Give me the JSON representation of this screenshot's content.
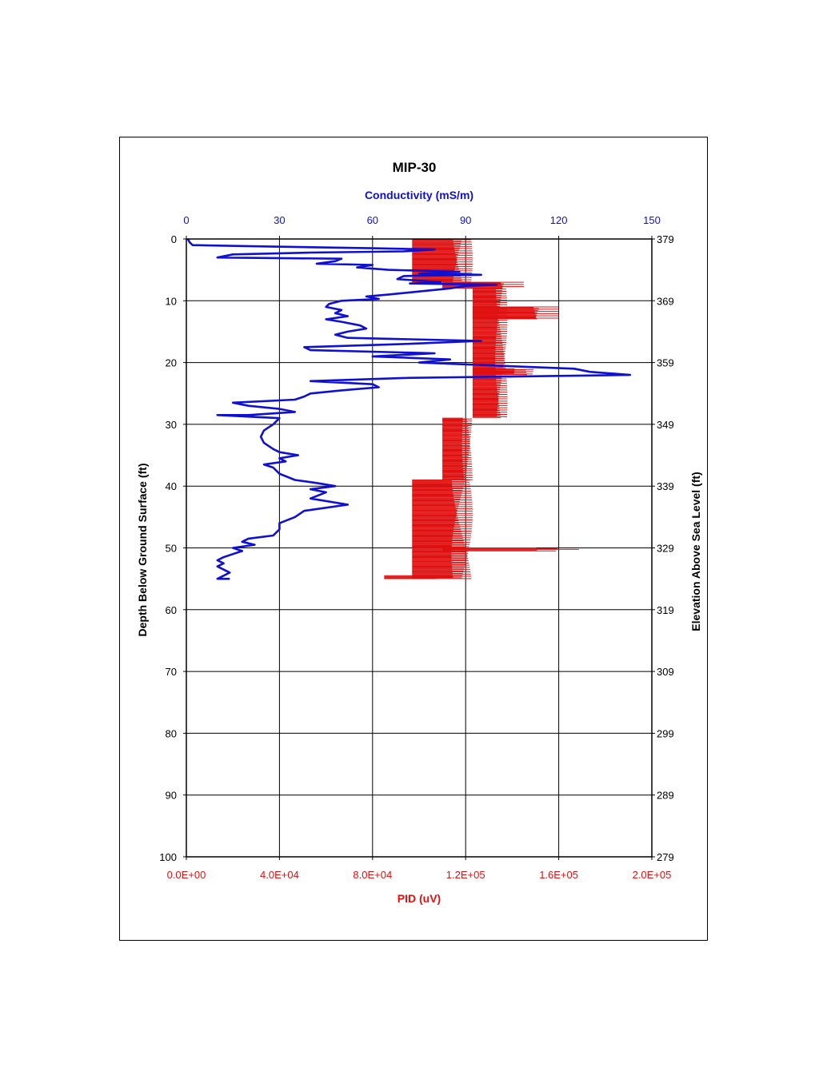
{
  "chart_data": {
    "type": "line",
    "title": "MIP-30",
    "orientation": "vertical-depth",
    "left_axis": {
      "label": "Depth Below Ground Surface (ft)",
      "range": [
        0,
        100
      ],
      "ticks": [
        "0",
        "10",
        "20",
        "30",
        "40",
        "50",
        "60",
        "70",
        "80",
        "90",
        "100"
      ]
    },
    "right_axis": {
      "label": "Elevation Above Sea Level (ft)",
      "range": [
        379,
        279
      ],
      "ticks": [
        "379",
        "369",
        "359",
        "349",
        "339",
        "329",
        "319",
        "309",
        "299",
        "289",
        "279"
      ]
    },
    "top_axis": {
      "label": "Conductivity (mS/m)",
      "range": [
        0,
        150
      ],
      "ticks": [
        "0",
        "30",
        "60",
        "90",
        "120",
        "150"
      ],
      "color": "#1010d0"
    },
    "bottom_axis": {
      "label": "PID (uV)",
      "range": [
        0,
        200000
      ],
      "ticks": [
        "0.0E+00",
        "4.0E+04",
        "8.0E+04",
        "1.2E+05",
        "1.6E+05",
        "2.0E+05"
      ],
      "color": "#e01010"
    },
    "grid": true,
    "series": [
      {
        "axis": "conductivity",
        "color": "#1010d0",
        "points": [
          [
            0.5,
            0
          ],
          [
            1,
            0.5
          ],
          [
            2,
            1
          ],
          [
            25,
            1.2
          ],
          [
            60,
            1.5
          ],
          [
            80,
            1.7
          ],
          [
            70,
            2
          ],
          [
            40,
            2.2
          ],
          [
            15,
            2.5
          ],
          [
            10,
            3
          ],
          [
            50,
            3.2
          ],
          [
            48,
            3.6
          ],
          [
            42,
            4
          ],
          [
            60,
            4.2
          ],
          [
            55,
            4.6
          ],
          [
            65,
            5
          ],
          [
            88,
            5.3
          ],
          [
            75,
            5.6
          ],
          [
            95,
            5.8
          ],
          [
            70,
            6
          ],
          [
            68,
            6.5
          ],
          [
            82,
            7
          ],
          [
            72,
            7.2
          ],
          [
            100,
            7.4
          ],
          [
            90,
            7.6
          ],
          [
            85,
            8
          ],
          [
            75,
            8.5
          ],
          [
            65,
            9
          ],
          [
            58,
            9.3
          ],
          [
            62,
            9.7
          ],
          [
            50,
            10
          ],
          [
            46,
            10.5
          ],
          [
            45,
            11
          ],
          [
            50,
            11.5
          ],
          [
            48,
            12
          ],
          [
            52,
            12.5
          ],
          [
            45,
            13
          ],
          [
            50,
            13.4
          ],
          [
            56,
            14
          ],
          [
            58,
            14.5
          ],
          [
            52,
            15
          ],
          [
            48,
            15.5
          ],
          [
            52,
            16
          ],
          [
            95,
            16.5
          ],
          [
            70,
            17
          ],
          [
            38,
            17.5
          ],
          [
            40,
            18
          ],
          [
            80,
            18.5
          ],
          [
            60,
            19
          ],
          [
            85,
            19.5
          ],
          [
            75,
            20
          ],
          [
            100,
            20.5
          ],
          [
            125,
            21
          ],
          [
            130,
            21.5
          ],
          [
            143,
            22
          ],
          [
            70,
            22.5
          ],
          [
            40,
            23
          ],
          [
            60,
            23.5
          ],
          [
            62,
            24
          ],
          [
            50,
            24.5
          ],
          [
            40,
            25
          ],
          [
            38,
            25.5
          ],
          [
            35,
            26
          ],
          [
            15,
            26.5
          ],
          [
            20,
            27
          ],
          [
            30,
            27.5
          ],
          [
            35,
            28
          ],
          [
            20,
            28.5
          ],
          [
            10,
            28.5
          ],
          [
            30,
            29
          ],
          [
            28,
            30
          ],
          [
            25,
            31
          ],
          [
            24,
            32
          ],
          [
            25,
            33
          ],
          [
            28,
            34
          ],
          [
            30,
            34.5
          ],
          [
            36,
            35
          ],
          [
            30,
            35.5
          ],
          [
            32,
            36
          ],
          [
            25,
            36.5
          ],
          [
            28,
            37
          ],
          [
            30,
            38
          ],
          [
            35,
            39
          ],
          [
            42,
            39.5
          ],
          [
            48,
            40
          ],
          [
            40,
            40.5
          ],
          [
            45,
            41
          ],
          [
            40,
            42
          ],
          [
            52,
            43
          ],
          [
            38,
            44
          ],
          [
            35,
            45
          ],
          [
            30,
            46
          ],
          [
            30,
            47
          ],
          [
            28,
            48
          ],
          [
            20,
            48.5
          ],
          [
            18,
            49
          ],
          [
            22,
            49.5
          ],
          [
            15,
            50
          ],
          [
            18,
            50.5
          ],
          [
            15,
            51
          ],
          [
            12,
            51.5
          ],
          [
            10,
            52
          ],
          [
            12,
            52.5
          ],
          [
            10,
            53
          ],
          [
            12,
            53.5
          ],
          [
            14,
            54
          ],
          [
            10,
            55
          ],
          [
            14,
            55
          ]
        ]
      },
      {
        "axis": "pid",
        "color": "#e01010",
        "segments": [
          [
            0,
            7,
            97000,
            123000
          ],
          [
            7,
            8,
            110000,
            145000
          ],
          [
            8,
            29,
            123000,
            138000
          ],
          [
            11,
            13,
            123000,
            160000
          ],
          [
            21,
            22,
            123000,
            150000
          ],
          [
            29,
            39,
            110000,
            123000
          ],
          [
            39,
            55,
            97000,
            123000
          ],
          [
            50,
            50.5,
            110000,
            170000
          ],
          [
            54.5,
            55,
            85000,
            110000
          ]
        ]
      }
    ]
  }
}
